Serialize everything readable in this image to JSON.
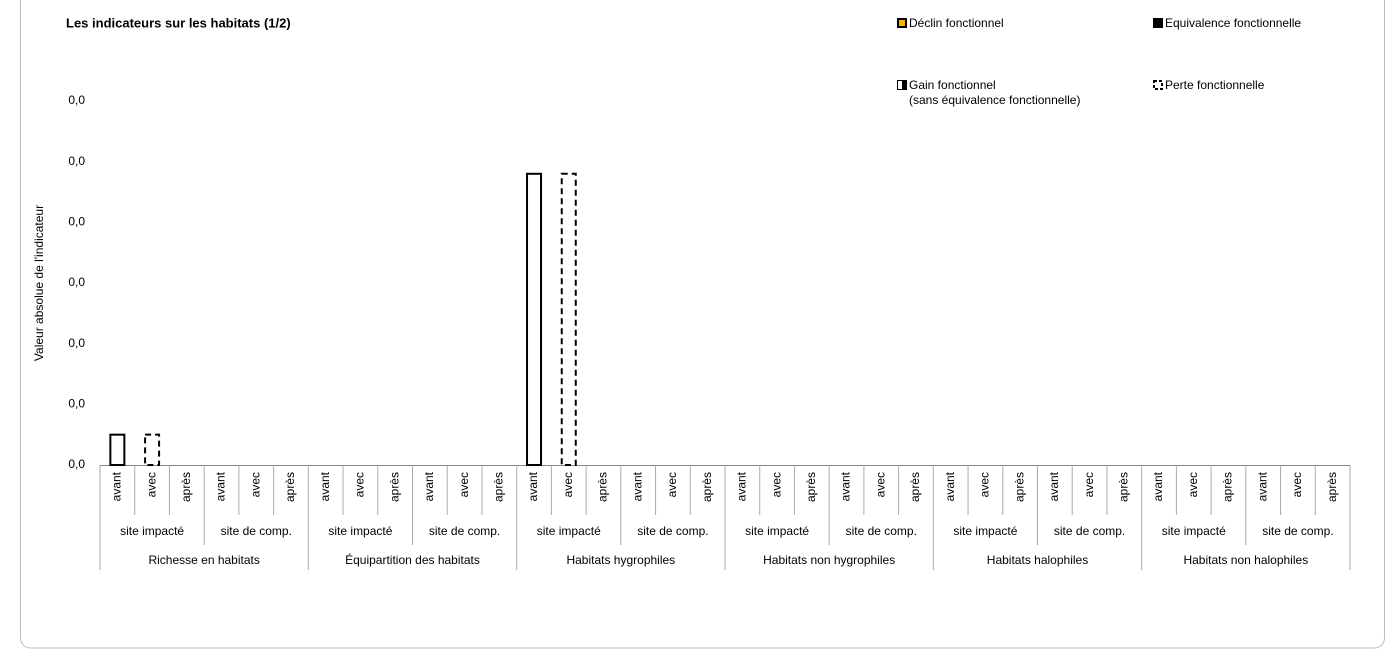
{
  "chart_data": {
    "type": "bar",
    "title": "Les indicateurs sur les habitats (1/2)",
    "y_label": "Valeur absolue de l'indicateur",
    "ylim": [
      0,
      0.06
    ],
    "yticks": [
      {
        "value": 0,
        "label": "0,0"
      },
      {
        "value": 0.01,
        "label": "0,0"
      },
      {
        "value": 0.02,
        "label": "0,0"
      },
      {
        "value": 0.03,
        "label": "0,0"
      },
      {
        "value": 0.04,
        "label": "0,0"
      },
      {
        "value": 0.05,
        "label": "0,0"
      },
      {
        "value": 0.06,
        "label": "0,0"
      }
    ],
    "grid": false,
    "categories": [
      "avant",
      "avec",
      "après",
      "avant",
      "avec",
      "après",
      "avant",
      "avec",
      "après",
      "avant",
      "avec",
      "après",
      "avant",
      "avec",
      "après",
      "avant",
      "avec",
      "après",
      "avant",
      "avec",
      "après",
      "avant",
      "avec",
      "après",
      "avant",
      "avec",
      "après",
      "avant",
      "avec",
      "après",
      "avant",
      "avec",
      "après",
      "avant",
      "avec",
      "après"
    ],
    "sites": [
      "site impacté",
      "site de comp.",
      "site impacté",
      "site de comp.",
      "site impacté",
      "site de comp.",
      "site impacté",
      "site de comp.",
      "site impacté",
      "site de comp.",
      "site impacté",
      "site de comp."
    ],
    "groups": [
      "Richesse en habitats",
      "Équipartition des habitats",
      "Habitats hygrophiles",
      "Habitats non hygrophiles",
      "Habitats halophiles",
      "Habitats non halophiles"
    ],
    "series": [
      {
        "color": "#ffffff",
        "values": [
          0.005,
          null,
          null,
          null,
          null,
          null,
          null,
          null,
          null,
          null,
          null,
          null,
          0.048,
          null,
          null,
          null,
          null,
          null,
          null,
          null,
          null,
          null,
          null,
          null,
          null,
          null,
          null,
          null,
          null,
          null,
          null,
          null,
          null,
          null,
          null,
          null
        ]
      },
      {
        "name": "Déclin fonctionnel",
        "color": "#f5b800",
        "values": [
          null,
          null,
          null,
          null,
          null,
          null,
          null,
          null,
          null,
          null,
          null,
          null,
          null,
          null,
          null,
          null,
          null,
          null,
          null,
          null,
          null,
          null,
          null,
          null,
          null,
          null,
          null,
          null,
          null,
          null,
          null,
          null,
          null,
          null,
          null,
          null
        ]
      },
      {
        "name": "Equivalence fonctionnelle",
        "color": "#000000",
        "values": [
          null,
          null,
          null,
          null,
          null,
          null,
          null,
          null,
          null,
          null,
          null,
          null,
          null,
          null,
          null,
          null,
          null,
          null,
          null,
          null,
          null,
          null,
          null,
          null,
          null,
          null,
          null,
          null,
          null,
          null,
          null,
          null,
          null,
          null,
          null,
          null
        ]
      },
      {
        "name": "Gain fonctionnel\n(sans équivalence fonctionnelle)",
        "color": "#000000",
        "half": true,
        "values": [
          null,
          null,
          null,
          null,
          null,
          null,
          null,
          null,
          null,
          null,
          null,
          null,
          null,
          null,
          null,
          null,
          null,
          null,
          null,
          null,
          null,
          null,
          null,
          null,
          null,
          null,
          null,
          null,
          null,
          null,
          null,
          null,
          null,
          null,
          null,
          null
        ]
      },
      {
        "name": "Perte fonctionnelle",
        "color": "#ffffff",
        "dashed": true,
        "values": [
          null,
          0.005,
          null,
          null,
          null,
          null,
          null,
          null,
          null,
          null,
          null,
          null,
          null,
          0.048,
          null,
          null,
          null,
          null,
          null,
          null,
          null,
          null,
          null,
          null,
          null,
          null,
          null,
          null,
          null,
          null,
          null,
          null,
          null,
          null,
          null,
          null
        ]
      }
    ]
  }
}
